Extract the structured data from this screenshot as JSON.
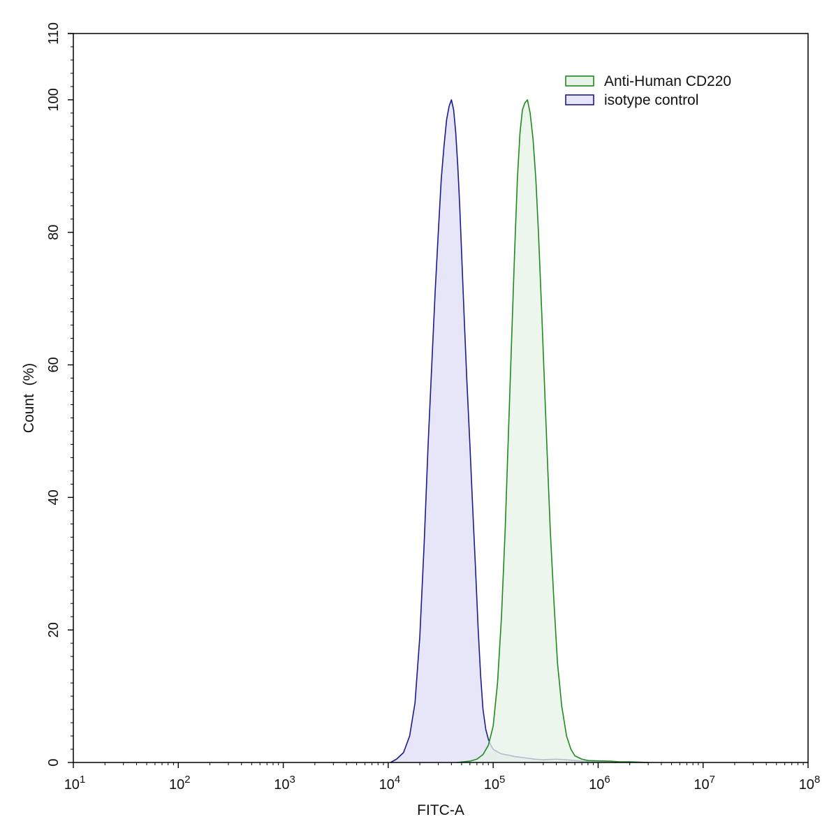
{
  "chart_data": {
    "type": "area",
    "xlabel": "FITC-A",
    "ylabel": "Count  (%)",
    "x_scale": "log",
    "xlim": [
      10,
      100000000
    ],
    "ylim": [
      0,
      110
    ],
    "x_ticks": [
      {
        "value": 10,
        "base": "10",
        "exp": "1"
      },
      {
        "value": 100,
        "base": "10",
        "exp": "2"
      },
      {
        "value": 1000,
        "base": "10",
        "exp": "3"
      },
      {
        "value": 10000,
        "base": "10",
        "exp": "4"
      },
      {
        "value": 100000,
        "base": "10",
        "exp": "5"
      },
      {
        "value": 1000000,
        "base": "10",
        "exp": "6"
      },
      {
        "value": 10000000,
        "base": "10",
        "exp": "7"
      },
      {
        "value": 100000000,
        "base": "10",
        "exp": "8"
      }
    ],
    "y_ticks": [
      "0",
      "20",
      "40",
      "60",
      "80",
      "100",
      "110"
    ],
    "legend_position": "top-right",
    "grid": false,
    "series": [
      {
        "name": "Anti-Human CD220",
        "color": "#1f8a1f",
        "fill": "#e6f3e6",
        "x": [
          45000,
          60000,
          70000,
          80000,
          90000,
          100000,
          110000,
          120000,
          130000,
          140000,
          150000,
          160000,
          170000,
          180000,
          190000,
          200000,
          212000,
          225000,
          240000,
          255000,
          270000,
          290000,
          310000,
          330000,
          350000,
          380000,
          410000,
          450000,
          500000,
          550000,
          600000,
          700000,
          800000,
          1000000,
          1300000,
          1600000,
          2000000,
          2500000,
          3000000
        ],
        "y": [
          0,
          0.2,
          0.5,
          1.2,
          2.6,
          5.5,
          12,
          22,
          35,
          50,
          64,
          77,
          88,
          95,
          98.5,
          99.5,
          100,
          98,
          94,
          88,
          80,
          68,
          56,
          45,
          35,
          24,
          15,
          8.5,
          4,
          2,
          1,
          0.5,
          0.3,
          0.25,
          0.2,
          0.1,
          0.1,
          0.05,
          0
        ]
      },
      {
        "name": "isotype control",
        "color": "#1a1a8c",
        "fill": "#e6e6f8",
        "x": [
          10500,
          12000,
          14000,
          16000,
          18000,
          20000,
          22000,
          24000,
          26000,
          28000,
          30000,
          32000,
          34000,
          36000,
          38000,
          40000,
          42000,
          44000,
          46000,
          48000,
          50000,
          53000,
          56000,
          60000,
          64000,
          68000,
          72000,
          76000,
          80000,
          85000,
          90000,
          95000,
          100000,
          110000,
          120000,
          140000,
          160000,
          200000,
          250000,
          300000,
          400000,
          500000,
          700000,
          1000000,
          1500000
        ],
        "y": [
          0,
          0.5,
          1.5,
          4,
          9,
          19,
          33,
          48,
          60,
          71,
          80,
          88,
          93,
          97,
          99,
          100,
          98.5,
          95,
          90,
          84,
          77,
          67,
          58,
          48,
          38,
          29,
          20,
          13,
          8,
          5,
          3.5,
          2.6,
          2,
          1.6,
          1.3,
          1.1,
          0.9,
          0.7,
          0.5,
          0.4,
          0.5,
          0.4,
          0.2,
          0.1,
          0
        ]
      }
    ]
  }
}
